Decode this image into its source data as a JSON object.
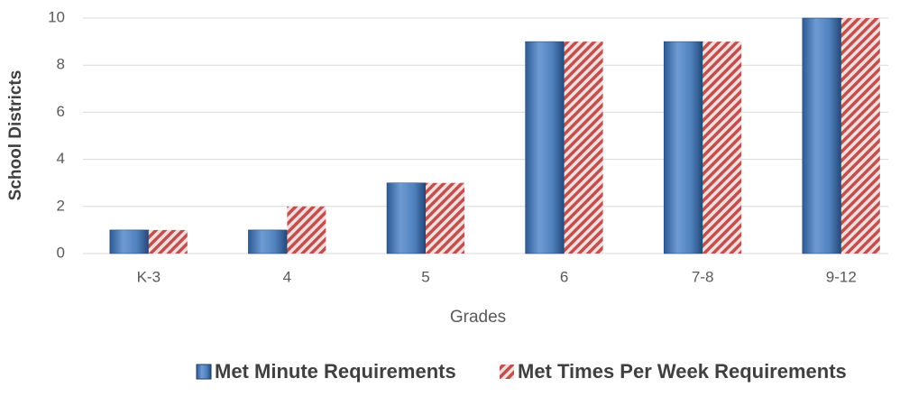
{
  "chart_data": {
    "type": "bar",
    "x_label": "Grades",
    "y_label": "School Districts",
    "categories": [
      "K-3",
      "4",
      "5",
      "6",
      "7-8",
      "9-12"
    ],
    "series": [
      {
        "name": "Met Minute Requirements",
        "color": "#4f81bd",
        "values": [
          1,
          1,
          3,
          9,
          9,
          10
        ]
      },
      {
        "name": "Met Times Per Week Requirements",
        "color": "#c0504d",
        "values": [
          1,
          2,
          3,
          9,
          9,
          10
        ]
      }
    ],
    "ylim": [
      0,
      10
    ],
    "yticks": [
      0,
      2,
      4,
      6,
      8,
      10
    ],
    "grid": true,
    "legend": "bottom"
  }
}
